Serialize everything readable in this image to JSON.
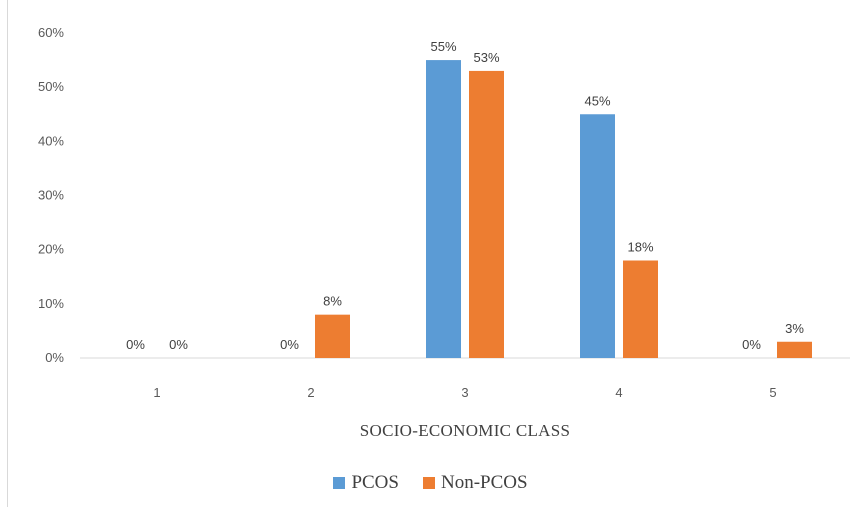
{
  "chart_data": {
    "type": "bar",
    "categories": [
      "1",
      "2",
      "3",
      "4",
      "5"
    ],
    "series": [
      {
        "name": "PCOS",
        "values": [
          0,
          0,
          55,
          45,
          0
        ],
        "labels": [
          "0%",
          "0%",
          "55%",
          "45%",
          "0%"
        ],
        "color": "#5b9bd5"
      },
      {
        "name": "Non-PCOS",
        "values": [
          0,
          8,
          53,
          18,
          3
        ],
        "labels": [
          "0%",
          "8%",
          "53%",
          "18%",
          "3%"
        ],
        "color": "#ed7d31"
      }
    ],
    "xlabel": "SOCIO-ECONOMIC CLASS",
    "ylabel": "",
    "ylim": [
      0,
      60
    ],
    "yticks": [
      "0%",
      "10%",
      "20%",
      "30%",
      "40%",
      "50%",
      "60%"
    ],
    "grid": false,
    "legend_position": "bottom"
  }
}
